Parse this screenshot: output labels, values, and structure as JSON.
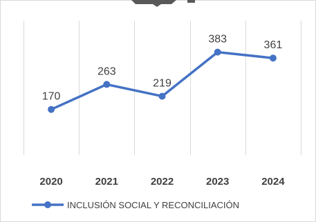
{
  "chart_data": {
    "type": "line",
    "categories": [
      "2020",
      "2021",
      "2022",
      "2023",
      "2024"
    ],
    "series": [
      {
        "name": "INCLUSIÓN SOCIAL Y RECONCILIACIÓN",
        "values": [
          170,
          263,
          219,
          383,
          361
        ]
      }
    ],
    "data_labels": [
      "170",
      "263",
      "219",
      "383",
      "361"
    ],
    "ylim": [
      0,
      500
    ],
    "grid": "vertical",
    "legend_position": "bottom-center",
    "colors": {
      "series": "#4472c4",
      "grid": "#d9d9d9",
      "text": "#404040"
    }
  }
}
